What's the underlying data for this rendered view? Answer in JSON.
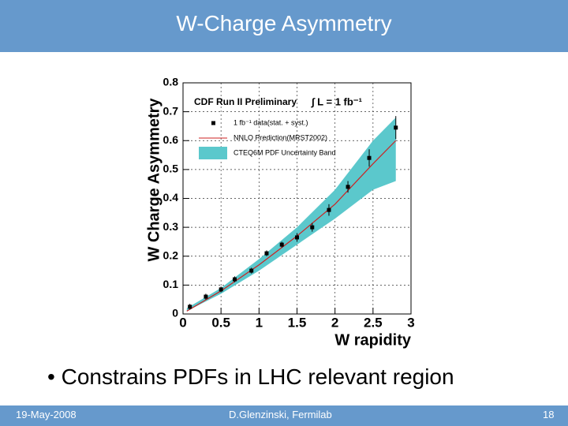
{
  "slide": {
    "title": "W-Charge Asymmetry",
    "bullet": "Constrains PDFs in LHC relevant region",
    "footer_date": "19-May-2008",
    "footer_author": "D.Glenzinski, Fermilab",
    "page_number": "18"
  },
  "chart_data": {
    "type": "scatter",
    "title": "CDF Run II Preliminary",
    "annotation": "∫ L = 1 fb⁻¹",
    "x_label": "W rapidity",
    "y_label": "W Charge Asymmetry",
    "xlim": [
      0,
      3
    ],
    "ylim": [
      0,
      0.8
    ],
    "xticks": [
      0,
      0.5,
      1,
      1.5,
      2,
      2.5,
      3
    ],
    "yticks": [
      0,
      0.1,
      0.2,
      0.3,
      0.4,
      0.5,
      0.6,
      0.7,
      0.8
    ],
    "grid": true,
    "legend": "upper left",
    "series": [
      {
        "name": "1 fb⁻¹ data(stat. + syst.)",
        "kind": "points",
        "color": "#000000",
        "x": [
          0.09,
          0.3,
          0.5,
          0.68,
          0.9,
          1.1,
          1.3,
          1.5,
          1.7,
          1.92,
          2.17,
          2.45,
          2.8
        ],
        "values": [
          0.025,
          0.06,
          0.085,
          0.12,
          0.15,
          0.21,
          0.24,
          0.265,
          0.3,
          0.36,
          0.44,
          0.54,
          0.645
        ],
        "errors": [
          0.01,
          0.01,
          0.01,
          0.01,
          0.01,
          0.01,
          0.01,
          0.015,
          0.015,
          0.02,
          0.02,
          0.03,
          0.04
        ]
      },
      {
        "name": "NNLO Prediction(MRST2002)",
        "kind": "line",
        "color": "#cc2222",
        "x": [
          0.05,
          0.5,
          1,
          1.5,
          2,
          2.5,
          2.8
        ],
        "values": [
          0.01,
          0.08,
          0.17,
          0.27,
          0.38,
          0.52,
          0.6
        ]
      },
      {
        "name": "CTEQ6M PDF Uncertainty Band",
        "kind": "band",
        "color": "#5bc8cc",
        "x": [
          0.05,
          0.5,
          1,
          1.5,
          2,
          2.5,
          2.8
        ],
        "lower": [
          0.01,
          0.07,
          0.15,
          0.24,
          0.33,
          0.43,
          0.46
        ],
        "upper": [
          0.02,
          0.09,
          0.19,
          0.3,
          0.43,
          0.6,
          0.68
        ]
      }
    ]
  }
}
